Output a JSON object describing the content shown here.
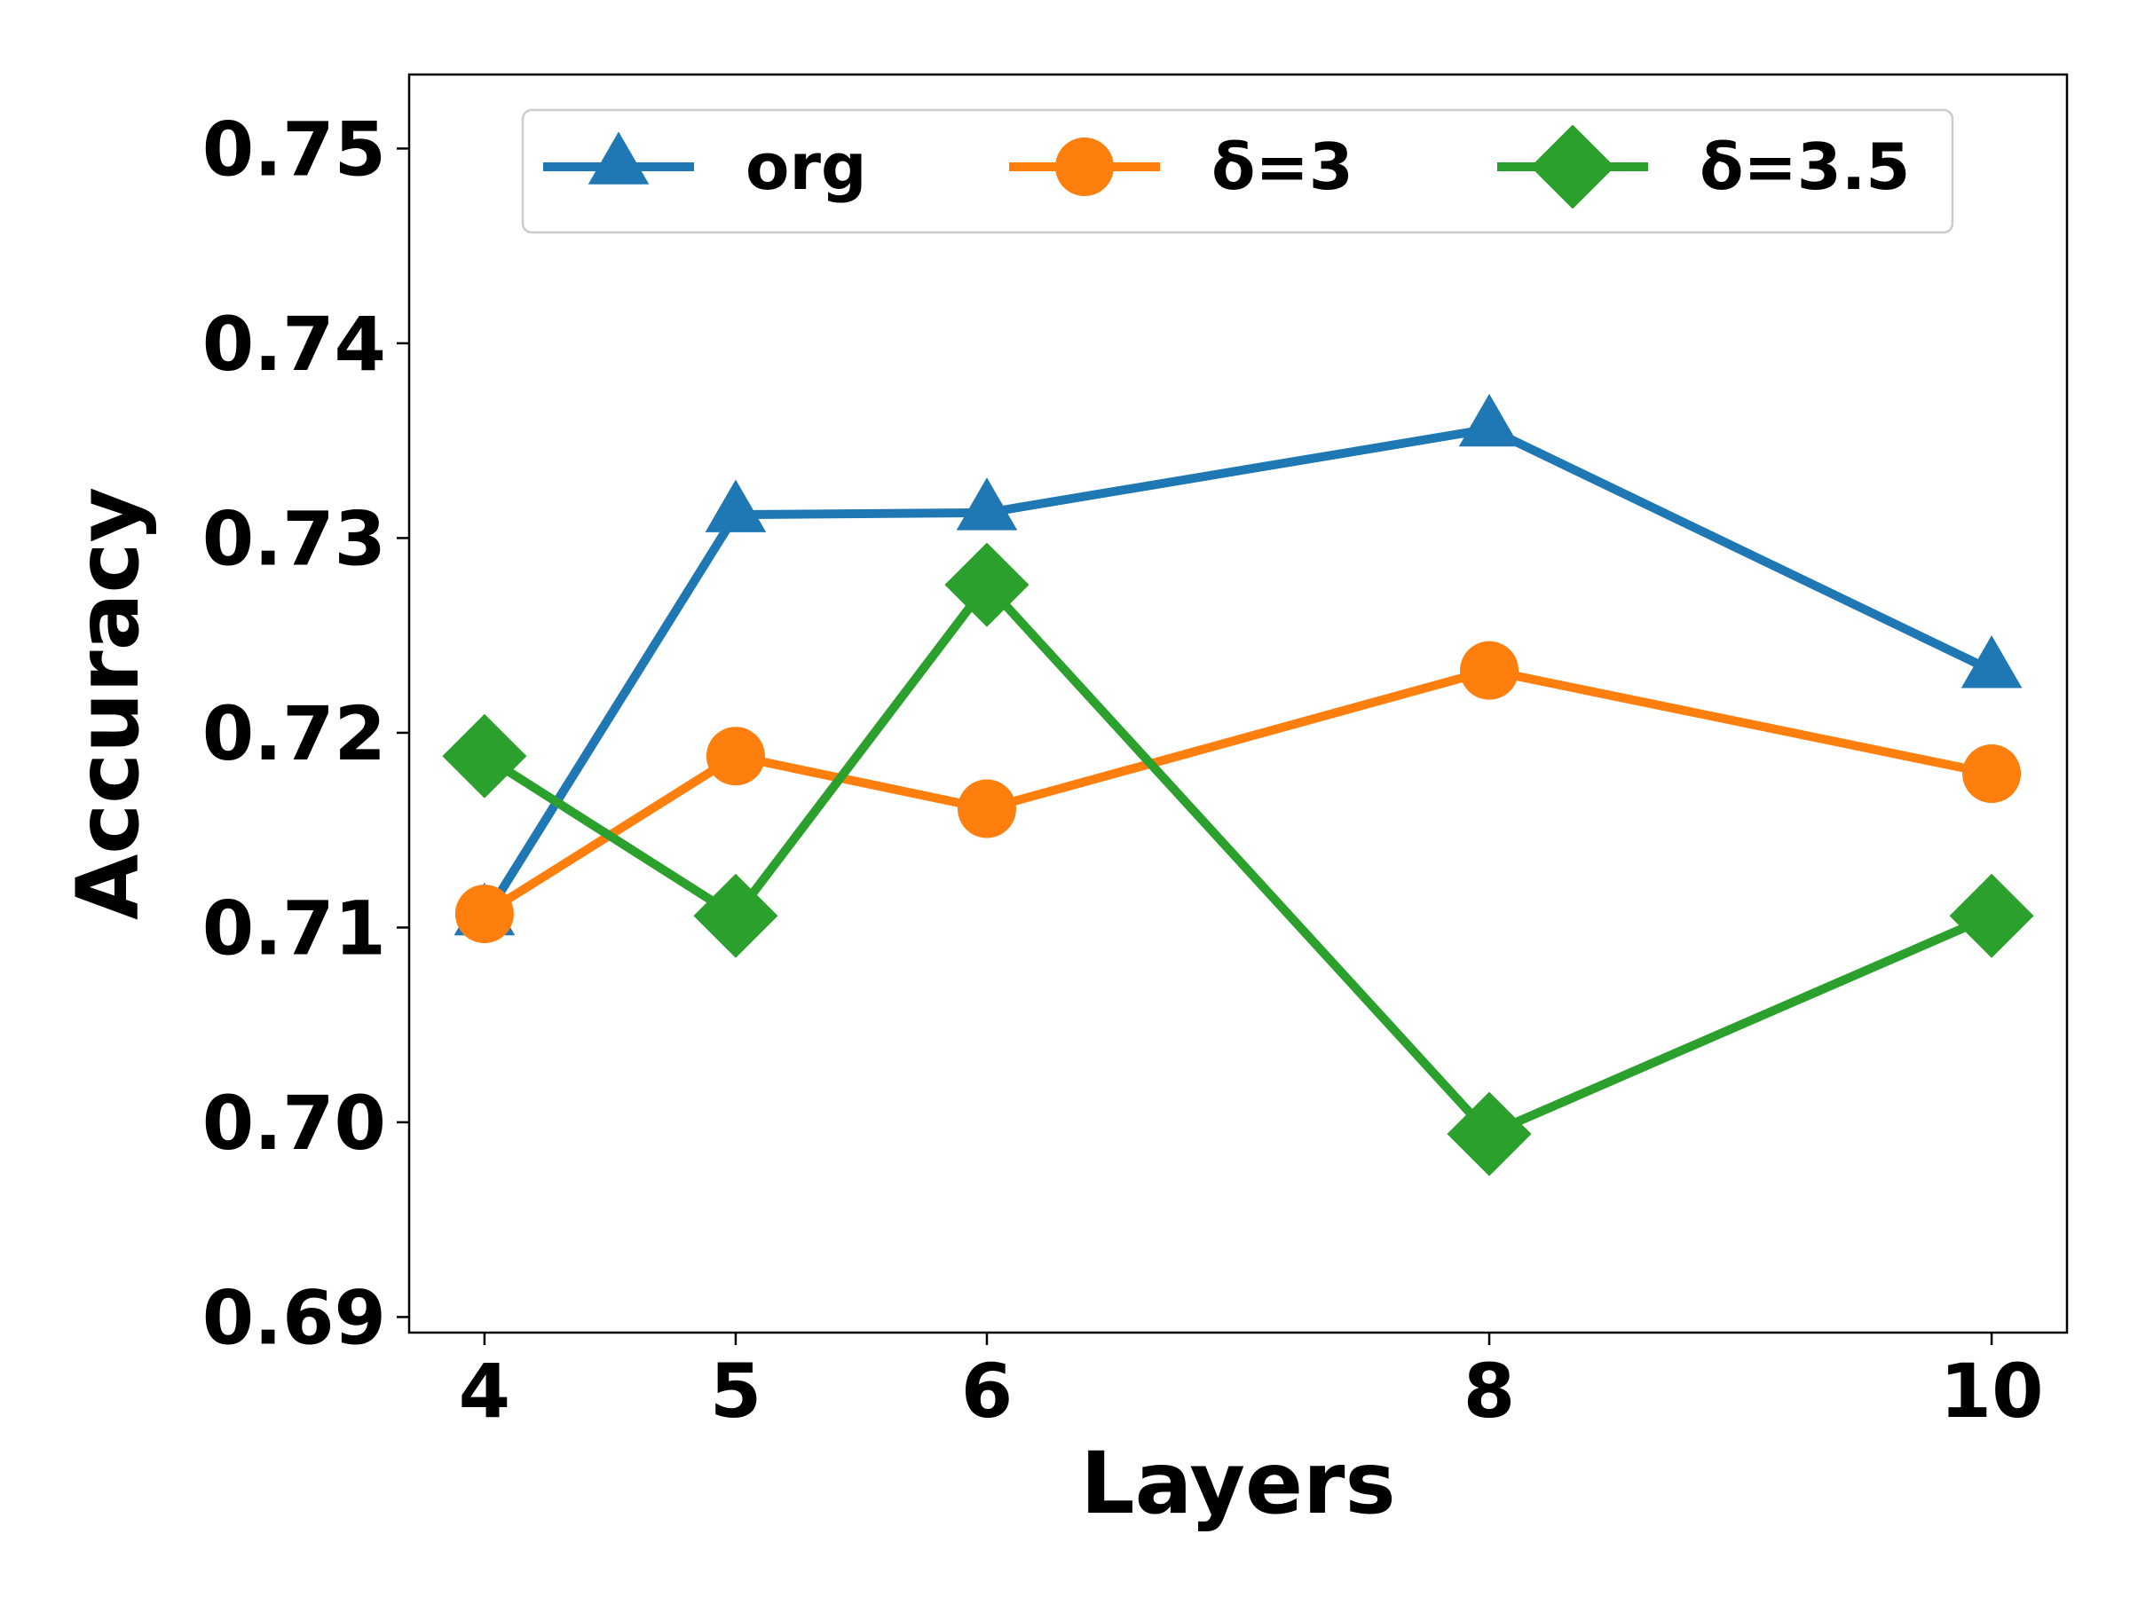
{
  "chart_data": {
    "type": "line",
    "xlabel": "Layers",
    "ylabel": "Accuracy",
    "x": [
      4,
      5,
      6,
      8,
      10
    ],
    "xlim": [
      3.7,
      10.3
    ],
    "ylim": [
      0.6892,
      0.7538
    ],
    "xticks": [
      4,
      5,
      6,
      8,
      10
    ],
    "yticks": [
      0.69,
      0.7,
      0.71,
      0.72,
      0.73,
      0.74,
      0.75
    ],
    "ytick_labels": [
      "0.69",
      "0.70",
      "0.71",
      "0.72",
      "0.73",
      "0.74",
      "0.75"
    ],
    "grid": false,
    "legend_position": "top",
    "series": [
      {
        "name": "org",
        "color": "#1f77b4",
        "marker": "triangle",
        "values": [
          0.7105,
          0.7312,
          0.7313,
          0.7356,
          0.7232
        ]
      },
      {
        "name": "δ=3",
        "color": "#ff7f0e",
        "marker": "circle",
        "values": [
          0.7107,
          0.7188,
          0.7161,
          0.7232,
          0.7179
        ]
      },
      {
        "name": "δ=3.5",
        "color": "#2ca02c",
        "marker": "diamond",
        "values": [
          0.7188,
          0.7106,
          0.7276,
          0.6994,
          0.7106
        ]
      }
    ]
  }
}
